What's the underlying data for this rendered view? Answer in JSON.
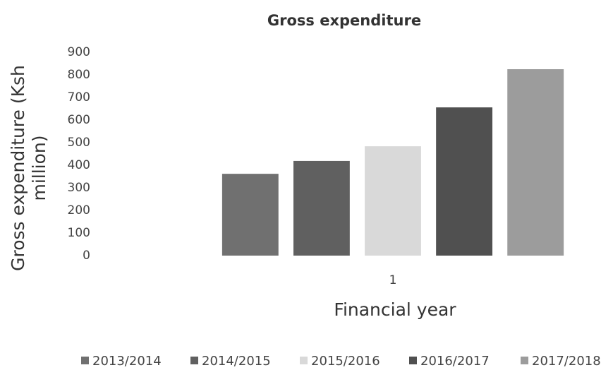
{
  "chart_data": {
    "type": "bar",
    "title": "Gross expenditure",
    "x_label": "Financial year",
    "y_label": "Gross expenditure (Ksh million)",
    "categories": [
      "1"
    ],
    "series": [
      {
        "name": "2013/2014",
        "color": "#707070",
        "values": [
          362
        ]
      },
      {
        "name": "2014/2015",
        "color": "#606060",
        "values": [
          419
        ]
      },
      {
        "name": "2015/2016",
        "color": "#d9d9d9",
        "values": [
          484
        ]
      },
      {
        "name": "2016/2017",
        "color": "#505050",
        "values": [
          656
        ]
      },
      {
        "name": "2017/2018",
        "color": "#9c9c9c",
        "values": [
          825
        ]
      }
    ],
    "ylim": [
      0,
      900
    ],
    "yticks": [
      0,
      100,
      200,
      300,
      400,
      500,
      600,
      700,
      800,
      900
    ],
    "grid": false,
    "legend": "bottom"
  }
}
